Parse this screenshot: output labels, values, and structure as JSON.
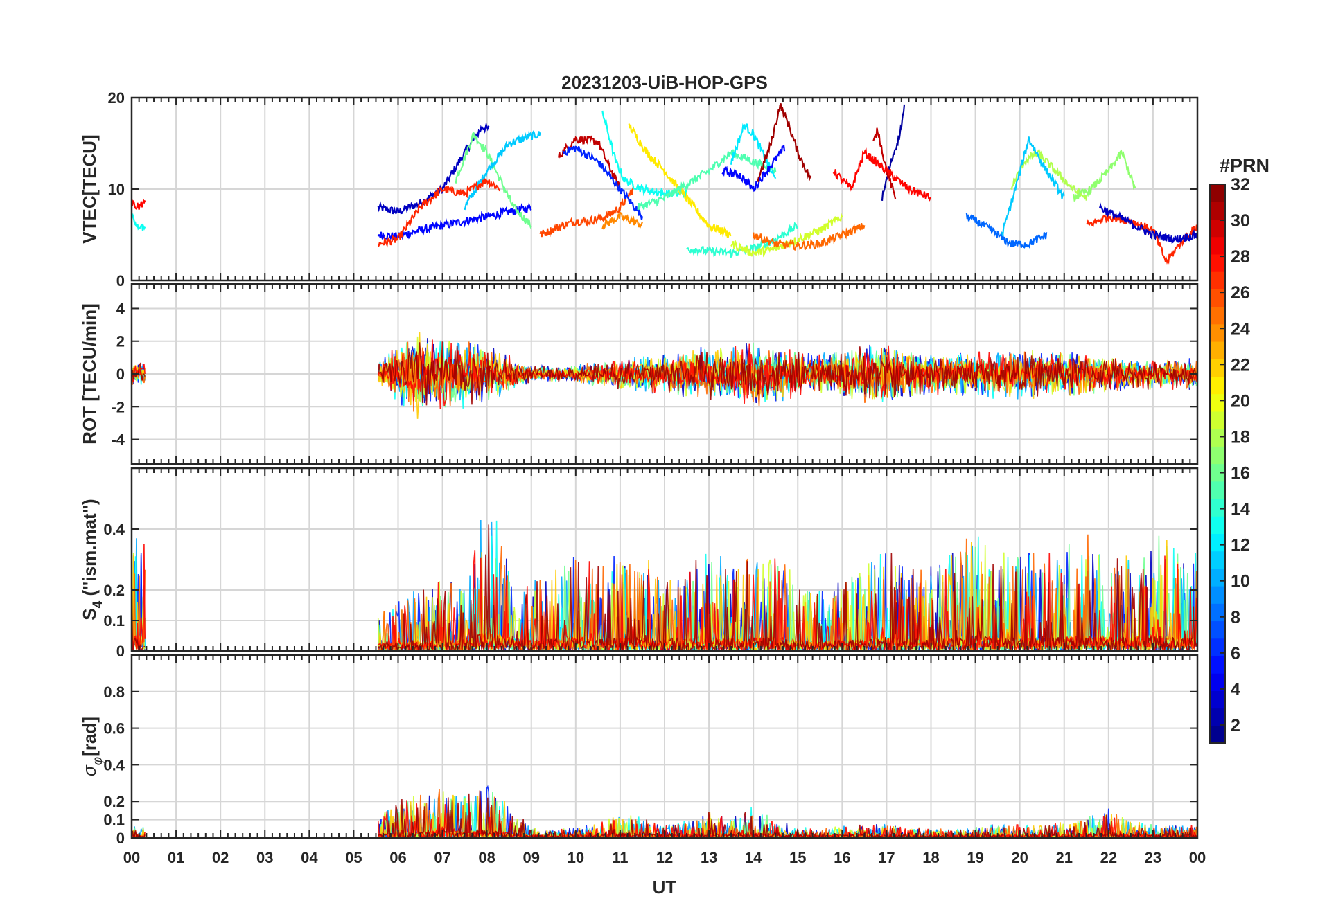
{
  "chart_data": {
    "type": "line",
    "title": "20231203-UiB-HOP-GPS",
    "xlabel": "UT",
    "x_ticks": [
      "00",
      "01",
      "02",
      "03",
      "04",
      "05",
      "06",
      "07",
      "08",
      "09",
      "10",
      "11",
      "12",
      "13",
      "14",
      "15",
      "16",
      "17",
      "18",
      "19",
      "20",
      "21",
      "22",
      "23",
      "00"
    ],
    "xlim": [
      0,
      24
    ],
    "grid": true,
    "colorbar": {
      "label": "#PRN",
      "range": [
        1,
        32
      ],
      "ticks": [
        "2",
        "4",
        "6",
        "8",
        "10",
        "12",
        "14",
        "16",
        "18",
        "20",
        "22",
        "24",
        "26",
        "28",
        "30",
        "32"
      ],
      "colormap": "jet"
    },
    "panels": [
      {
        "ylabel": "VTEC[TECU]",
        "ylim": [
          0,
          20
        ],
        "y_ticks": [
          "0",
          "10",
          "20"
        ],
        "series": [
          {
            "prn": 3,
            "x": [
              5.55,
              6,
              6.5,
              7,
              7.5,
              7.9,
              8.05
            ],
            "values": [
              8,
              7.5,
              8.5,
              10,
              14,
              16.8,
              16.5
            ]
          },
          {
            "prn": 5,
            "x": [
              5.55,
              6,
              6.5,
              7,
              7.5,
              8,
              8.5,
              9
            ],
            "values": [
              5,
              4.8,
              5.5,
              6,
              6.5,
              7,
              7.5,
              8
            ]
          },
          {
            "prn": 16,
            "x": [
              7.3,
              7.7,
              8,
              8.3,
              8.6,
              9
            ],
            "values": [
              11,
              16,
              14,
              11,
              8,
              6
            ]
          },
          {
            "prn": 11,
            "x": [
              7.5,
              8,
              8.5,
              9,
              9.2
            ],
            "values": [
              8,
              12,
              15,
              15.8,
              16
            ]
          },
          {
            "prn": 27,
            "x": [
              5.55,
              6,
              6.5,
              7,
              7.5,
              8,
              8.3
            ],
            "values": [
              4,
              4.5,
              8,
              10,
              9.5,
              11,
              10
            ]
          },
          {
            "prn": 26,
            "x": [
              9.2,
              9.7,
              10,
              10.3,
              10.7,
              11,
              11.3
            ],
            "values": [
              5,
              6,
              6.5,
              6.5,
              7,
              8,
              10
            ]
          },
          {
            "prn": 30,
            "x": [
              9.6,
              10,
              10.5,
              10.7,
              11
            ],
            "values": [
              13.5,
              15.5,
              15.2,
              13,
              10
            ]
          },
          {
            "prn": 6,
            "x": [
              9.7,
              10,
              10.5,
              11,
              11.5
            ],
            "values": [
              14,
              14.5,
              13,
              10,
              7
            ]
          },
          {
            "prn": 24,
            "x": [
              10.6,
              11,
              11.3,
              11.5
            ],
            "values": [
              6,
              7,
              6.5,
              6
            ]
          },
          {
            "prn": 13,
            "x": [
              10.6,
              10.9,
              11.1,
              11.5,
              12,
              12.5
            ],
            "values": [
              18.5,
              13,
              11,
              10,
              9.5,
              9.5
            ]
          },
          {
            "prn": 21,
            "x": [
              11.2,
              11.6,
              12,
              12.5,
              13,
              13.5
            ],
            "values": [
              17,
              14,
              12,
              9,
              6,
              5
            ]
          },
          {
            "prn": 15,
            "x": [
              11.4,
              12,
              12.5,
              13,
              13.5,
              14,
              14.5
            ],
            "values": [
              8,
              9,
              10.5,
              12,
              14,
              13,
              12
            ]
          },
          {
            "prn": 12,
            "x": [
              13.5,
              13.8,
              14,
              14.2,
              14.5
            ],
            "values": [
              13,
              17,
              16,
              14,
              11
            ]
          },
          {
            "prn": 5,
            "x": [
              13.3,
              13.7,
              14,
              14.3,
              14.7
            ],
            "values": [
              12,
              11.5,
              10,
              12,
              14.5
            ]
          },
          {
            "prn": 31,
            "x": [
              14.1,
              14.4,
              14.6,
              14.8,
              15,
              15.3
            ],
            "values": [
              11,
              15,
              19.2,
              17,
              14,
              11
            ]
          },
          {
            "prn": 14,
            "x": [
              12.5,
              13,
              13.5,
              14,
              14.5,
              15
            ],
            "values": [
              3.5,
              3.2,
              3,
              3.5,
              4.5,
              6
            ]
          },
          {
            "prn": 19,
            "x": [
              13.5,
              14,
              14.5,
              15,
              15.5,
              16
            ],
            "values": [
              4,
              3,
              3.5,
              4.5,
              5.5,
              7
            ]
          },
          {
            "prn": 25,
            "x": [
              14,
              14.5,
              15,
              15.5,
              16,
              16.5
            ],
            "values": [
              5,
              4,
              3.8,
              4,
              5,
              6
            ]
          },
          {
            "prn": 2,
            "x": [
              16.9,
              17.1,
              17.3,
              17.4
            ],
            "values": [
              9,
              13,
              16,
              19
            ]
          },
          {
            "prn": 30,
            "x": [
              16.7,
              16.8,
              17,
              17.2
            ],
            "values": [
              15,
              16.5,
              12,
              9
            ]
          },
          {
            "prn": 28,
            "x": [
              15.8,
              16.2,
              16.5,
              17,
              17.5,
              18
            ],
            "values": [
              12,
              10,
              14,
              12,
              10,
              9
            ]
          },
          {
            "prn": 8,
            "x": [
              18.8,
              19.2,
              19.5,
              19.8,
              20.2,
              20.6
            ],
            "values": [
              7,
              6,
              5,
              4,
              4,
              5
            ]
          },
          {
            "prn": 18,
            "x": [
              19.8,
              20.1,
              20.4,
              20.8,
              21.2,
              21.5
            ],
            "values": [
              10,
              13,
              14,
              12,
              10,
              9
            ]
          },
          {
            "prn": 11,
            "x": [
              19.6,
              19.9,
              20.2,
              20.6,
              21
            ],
            "values": [
              5,
              10,
              15.5,
              12,
              9
            ]
          },
          {
            "prn": 17,
            "x": [
              21.2,
              21.6,
              22,
              22.3,
              22.6
            ],
            "values": [
              9,
              10,
              12,
              14,
              10
            ]
          },
          {
            "prn": 27,
            "x": [
              21.5,
              22,
              22.5,
              23,
              23.3,
              23.6,
              24
            ],
            "values": [
              6,
              7,
              6.5,
              5.5,
              2,
              4,
              6
            ]
          },
          {
            "prn": 3,
            "x": [
              21.8,
              22.2,
              22.6,
              23,
              23.5,
              24
            ],
            "values": [
              8,
              7,
              6,
              5,
              4.5,
              5
            ]
          },
          {
            "prn": 28,
            "x": [
              0,
              0.15,
              0.3
            ],
            "values": [
              8.5,
              8,
              8.5
            ]
          },
          {
            "prn": 13,
            "x": [
              0,
              0.15,
              0.3
            ],
            "values": [
              7,
              6,
              5.5
            ]
          }
        ]
      },
      {
        "ylabel": "ROT [TECU/min]",
        "ylim": [
          -5.5,
          5.5
        ],
        "y_ticks": [
          "-4",
          "-2",
          "0",
          "2",
          "4"
        ],
        "spread": [
          {
            "x": [
              0,
              0.3,
              5.55,
              6,
              6.5,
              7,
              7.5,
              8,
              8.5,
              9,
              9.5,
              10,
              10.5,
              11,
              11.5,
              12,
              12.5,
              13,
              13.5,
              14,
              14.5,
              15,
              15.5,
              16,
              16.5,
              17,
              17.5,
              18,
              18.5,
              19,
              19.5,
              20,
              20.5,
              21,
              21.5,
              22,
              22.5,
              23,
              23.5,
              24
            ],
            "amplitude": [
              0.8,
              0.8,
              0.8,
              2,
              3,
              2.5,
              2.2,
              2,
              1.2,
              0.6,
              0.5,
              0.6,
              0.8,
              1,
              1.2,
              1.4,
              1.5,
              1.8,
              1.8,
              2.2,
              2,
              1.5,
              1.4,
              1.6,
              2,
              2,
              1.6,
              1.4,
              1.5,
              1.5,
              1.6,
              1.6,
              1.6,
              1.5,
              1.4,
              1.2,
              1,
              1,
              1,
              1
            ]
          }
        ]
      },
      {
        "ylabel": "S4 (\"ism.mat\")",
        "ylabel_parts": {
          "base": "S",
          "sub": "4",
          "rest": " (\"ism.mat\")"
        },
        "ylim": [
          0,
          0.6
        ],
        "y_ticks": [
          "0",
          "0.1",
          "0.2",
          "0.4"
        ],
        "spread": [
          {
            "x": [
              0,
              0.3,
              5.55,
              6,
              6.5,
              7,
              7.5,
              8,
              8.5,
              9,
              9.5,
              10,
              10.5,
              11,
              11.5,
              12,
              12.5,
              13,
              13.5,
              14,
              14.5,
              15,
              15.5,
              16,
              16.5,
              17,
              17.5,
              18,
              18.5,
              19,
              19.5,
              20,
              20.5,
              21,
              21.5,
              22,
              22.5,
              23,
              23.5,
              24
            ],
            "amplitude": [
              0.35,
              0.35,
              0.12,
              0.15,
              0.18,
              0.2,
              0.22,
              0.45,
              0.3,
              0.2,
              0.25,
              0.3,
              0.25,
              0.28,
              0.3,
              0.2,
              0.25,
              0.3,
              0.25,
              0.28,
              0.3,
              0.22,
              0.18,
              0.22,
              0.25,
              0.3,
              0.25,
              0.25,
              0.3,
              0.35,
              0.3,
              0.3,
              0.28,
              0.3,
              0.35,
              0.3,
              0.3,
              0.35,
              0.3,
              0.3
            ]
          }
        ]
      },
      {
        "ylabel": "σφ[rad]",
        "ylabel_parts": {
          "base": "σ",
          "sub": "φ",
          "rest": "[rad]"
        },
        "ylim": [
          0,
          1
        ],
        "y_ticks": [
          "0",
          "0.1",
          "0.2",
          "0.4",
          "0.6",
          "0.8"
        ],
        "spread": [
          {
            "x": [
              0,
              0.3,
              5.55,
              6,
              6.5,
              7,
              7.5,
              8,
              8.5,
              9,
              9.5,
              10,
              10.5,
              11,
              11.5,
              12,
              12.5,
              13,
              13.5,
              14,
              14.5,
              15,
              15.5,
              16,
              16.5,
              17,
              17.5,
              18,
              18.5,
              19,
              19.5,
              20,
              20.5,
              21,
              21.5,
              22,
              22.5,
              23,
              23.5,
              24
            ],
            "amplitude": [
              0.05,
              0.05,
              0.1,
              0.18,
              0.22,
              0.25,
              0.2,
              0.28,
              0.15,
              0.05,
              0.04,
              0.05,
              0.06,
              0.12,
              0.1,
              0.06,
              0.08,
              0.12,
              0.1,
              0.15,
              0.08,
              0.05,
              0.04,
              0.06,
              0.06,
              0.06,
              0.05,
              0.04,
              0.04,
              0.05,
              0.06,
              0.06,
              0.06,
              0.08,
              0.1,
              0.15,
              0.08,
              0.06,
              0.06,
              0.06
            ]
          }
        ]
      }
    ]
  }
}
